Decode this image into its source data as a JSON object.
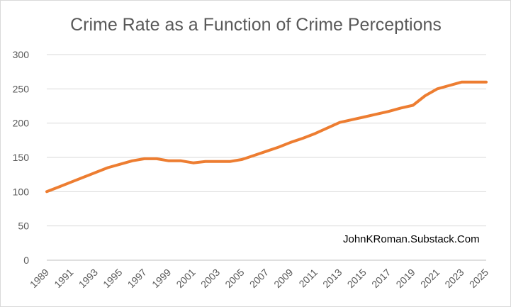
{
  "chart_data": {
    "type": "line",
    "title": "Crime Rate as a Function of Crime Perceptions",
    "xlabel": "",
    "ylabel": "",
    "annotation": "JohnKRoman.Substack.Com",
    "ylim": [
      0,
      300
    ],
    "yticks": [
      0,
      50,
      100,
      150,
      200,
      250,
      300
    ],
    "xticks": [
      1989,
      1991,
      1993,
      1995,
      1997,
      1999,
      2001,
      2003,
      2005,
      2007,
      2009,
      2011,
      2013,
      2015,
      2017,
      2019,
      2021,
      2023,
      2025
    ],
    "grid": "horizontal",
    "legend": "none",
    "colors": {
      "line": "#ed7d31",
      "grid": "#d9d9d9",
      "text": "#595959"
    },
    "x": [
      1989,
      1990,
      1991,
      1992,
      1993,
      1994,
      1995,
      1996,
      1997,
      1998,
      1999,
      2000,
      2001,
      2002,
      2003,
      2004,
      2005,
      2006,
      2007,
      2008,
      2009,
      2010,
      2011,
      2012,
      2013,
      2014,
      2015,
      2016,
      2017,
      2018,
      2019,
      2020,
      2021,
      2022,
      2023,
      2024,
      2025
    ],
    "series": [
      {
        "values": [
          100,
          107,
          114,
          121,
          128,
          135,
          140,
          145,
          148,
          148,
          145,
          145,
          142,
          144,
          144,
          144,
          147,
          153,
          159,
          165,
          172,
          178,
          185,
          193,
          201,
          205,
          209,
          213,
          217,
          222,
          226,
          240,
          250,
          255,
          260,
          260,
          260
        ]
      }
    ]
  }
}
